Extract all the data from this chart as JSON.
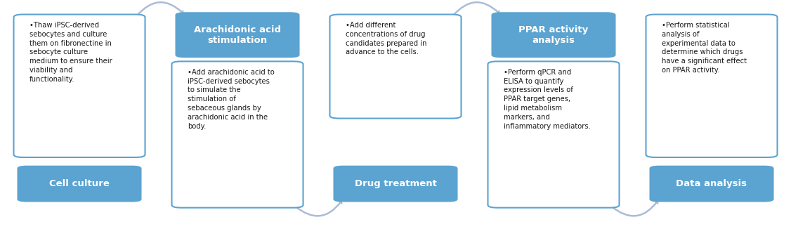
{
  "steps": [
    {
      "label": "Cell culture",
      "label_pos": "bottom",
      "bullet_text": "•Thaw iPSC-derived\nsebocytes and culture\nthem on fibronectine in\nsebocyte culture\nmedium to ensure their\nviability and\nfunctionality.",
      "box_color": "#5BA3D0",
      "text_color": "white",
      "label_fontsize": 9.5,
      "bullet_fontsize": 7.2
    },
    {
      "label": "Arachidonic acid\nstimulation",
      "label_pos": "top",
      "bullet_text": "•Add arachidonic acid to\niPSC-derived sebocytes\nto simulate the\nstimulation of\nsebaceous glands by\narachidonic acid in the\nbody.",
      "box_color": "#5BA3D0",
      "text_color": "white",
      "label_fontsize": 9.5,
      "bullet_fontsize": 7.2
    },
    {
      "label": "Drug treatment",
      "label_pos": "bottom",
      "bullet_text": "•Add different\nconcentrations of drug\ncandidates prepared in\nadvance to the cells.",
      "box_color": "#5BA3D0",
      "text_color": "white",
      "label_fontsize": 9.5,
      "bullet_fontsize": 7.2
    },
    {
      "label": "PPAR activity\nanalysis",
      "label_pos": "top",
      "bullet_text": "•Perform qPCR and\nELISA to quantify\nexpression levels of\nPPAR target genes,\nlipid metabolism\nmarkers, and\ninflammatory mediators.",
      "box_color": "#5BA3D0",
      "text_color": "white",
      "label_fontsize": 9.5,
      "bullet_fontsize": 7.2
    },
    {
      "label": "Data analysis",
      "label_pos": "bottom",
      "bullet_text": "•Perform statistical\nanalysis of\nexperimental data to\ndetermine which drugs\nhave a significant effect\non PPAR activity.",
      "box_color": "#5BA3D0",
      "text_color": "white",
      "label_fontsize": 9.5,
      "bullet_fontsize": 7.2
    }
  ],
  "arrow_color": "#AABCD8",
  "background_color": "white",
  "figwidth": 11.26,
  "figheight": 3.26,
  "dpi": 100
}
